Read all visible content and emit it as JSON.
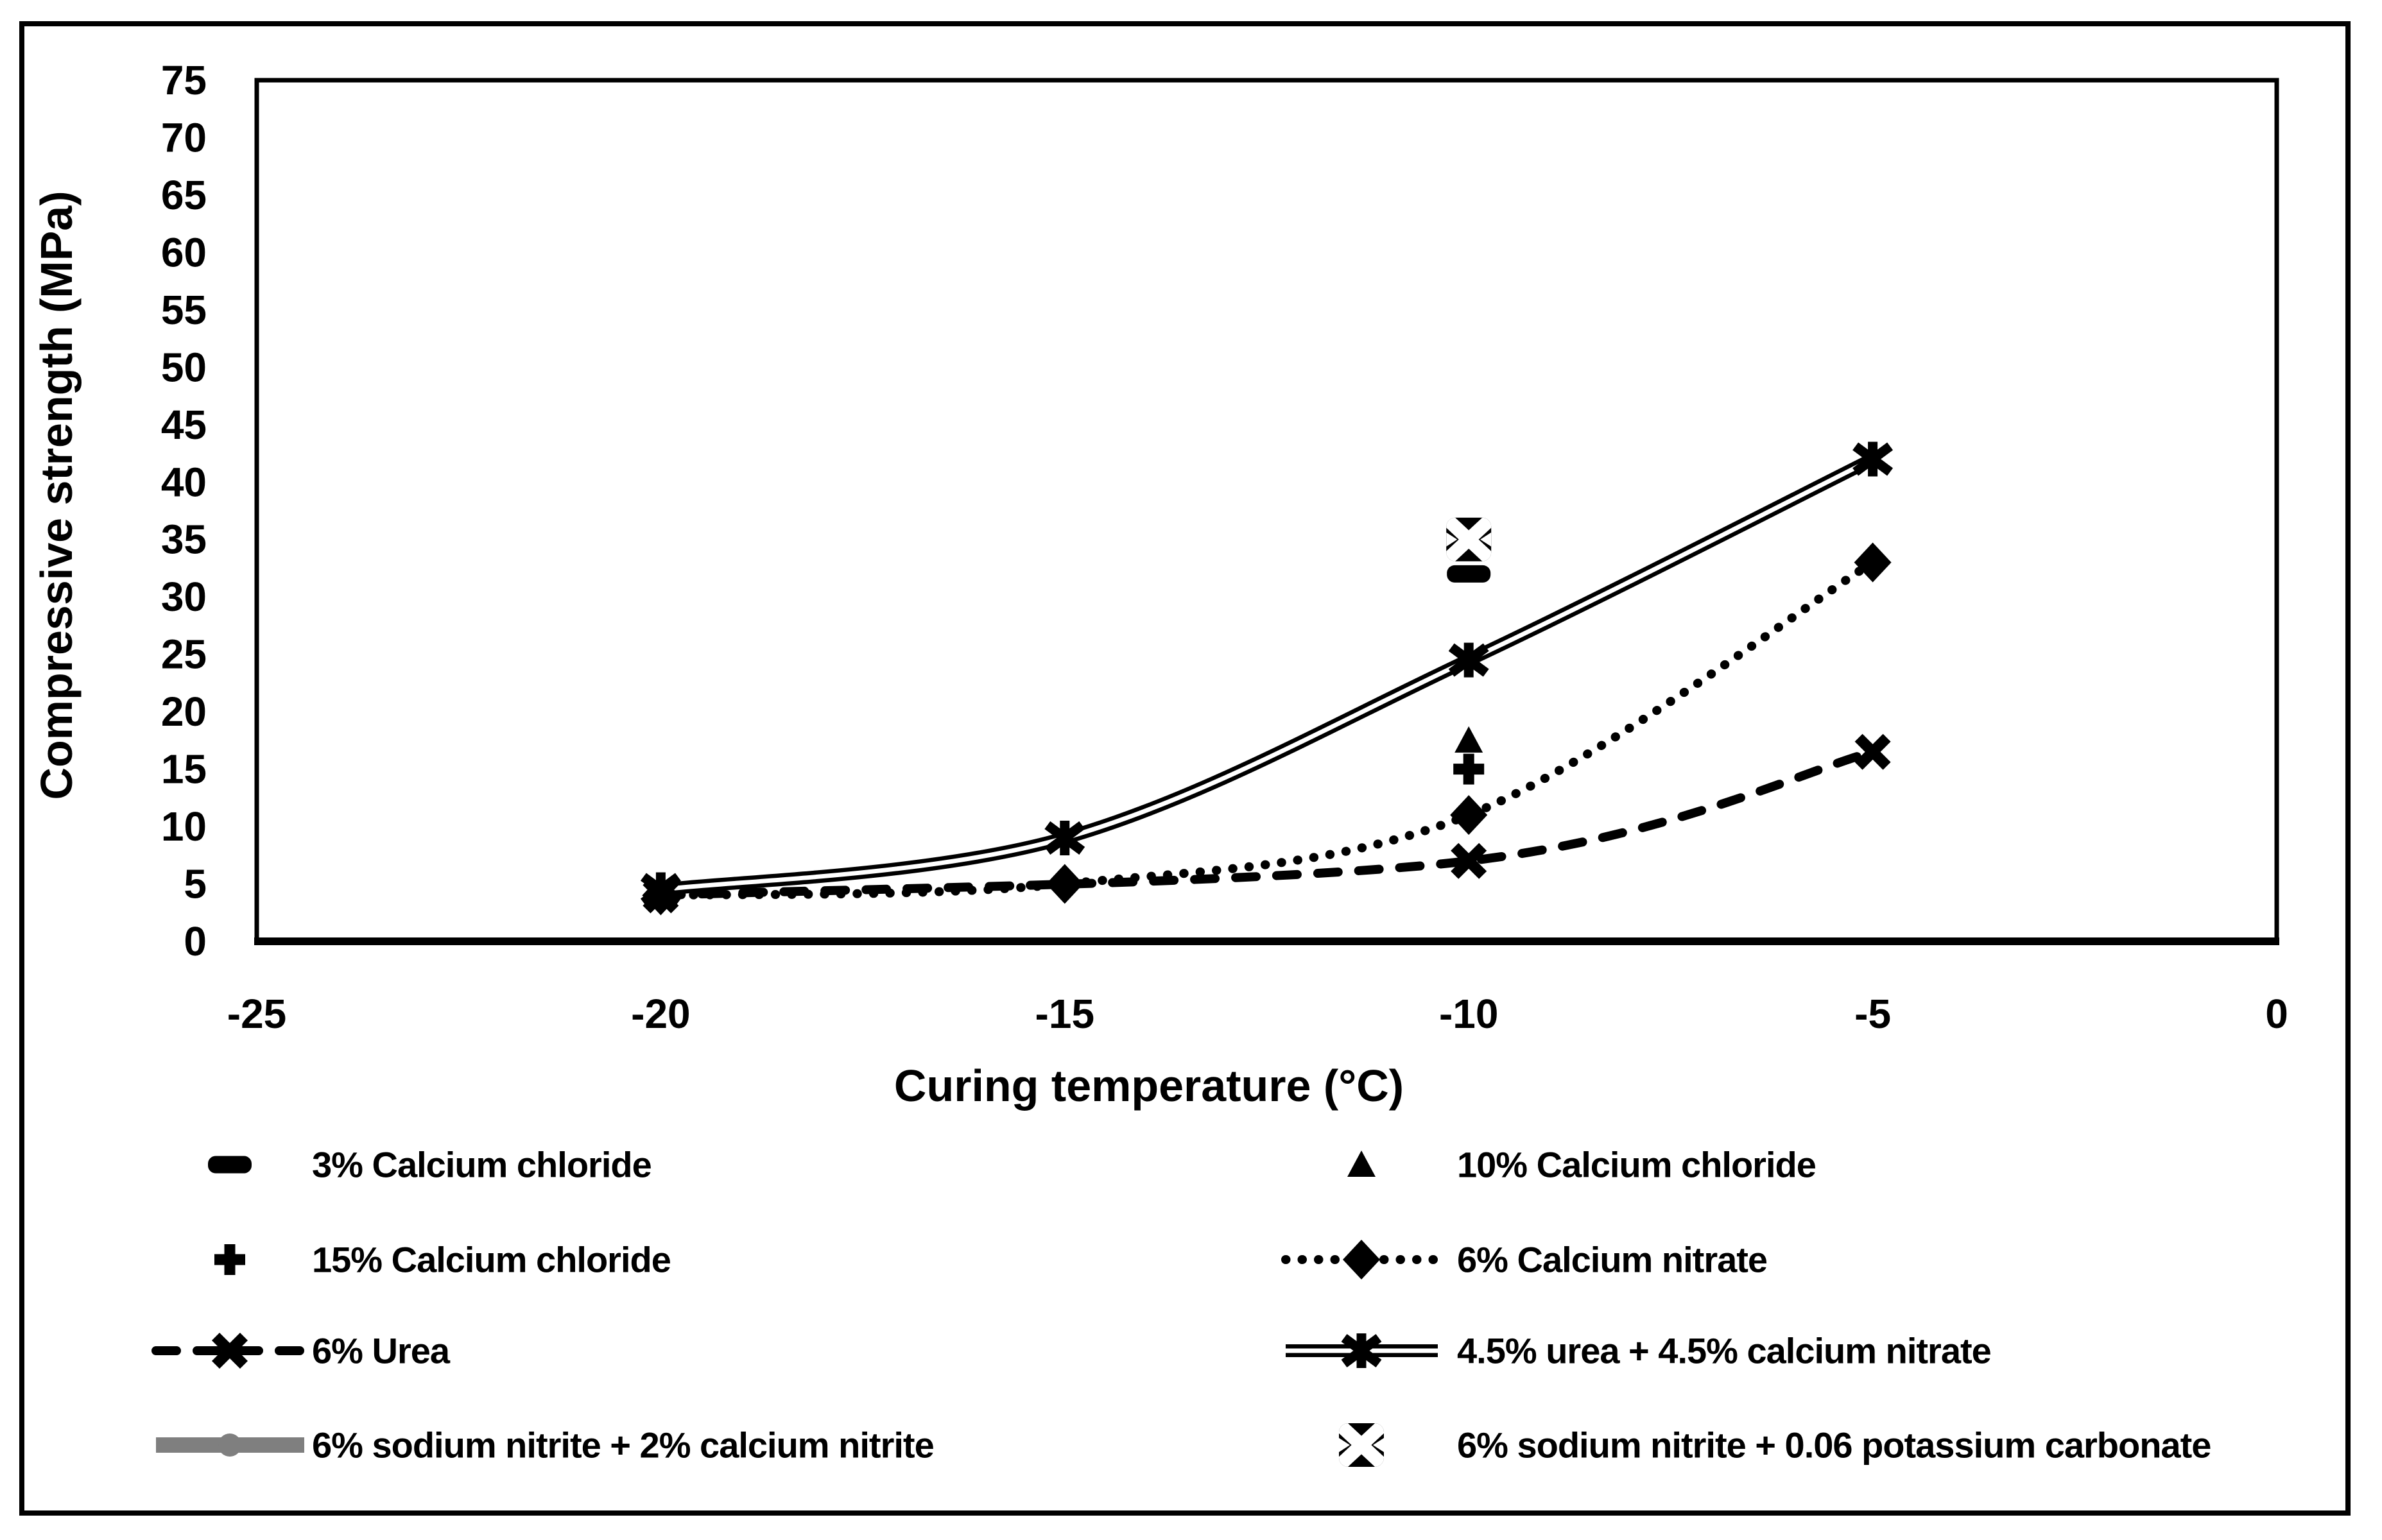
{
  "figure": {
    "x_axis_title": "Curing temperature (°C)",
    "y_axis_title": "Compressive strength (MPa)"
  },
  "colors": {
    "black": "#000000",
    "gray": "#7f7f7f",
    "background": "#ffffff"
  },
  "chart_data": {
    "type": "line",
    "title": "",
    "xlabel": "Curing temperature (°C)",
    "ylabel": "Compressive strength (MPa)",
    "xlim": [
      -25,
      0
    ],
    "ylim": [
      0,
      75
    ],
    "x_ticks": [
      "-25",
      "-20",
      "-15",
      "-10",
      "-5",
      "0"
    ],
    "x_tick_values": [
      -25,
      -20,
      -15,
      -10,
      -5,
      0
    ],
    "y_ticks": [
      "0",
      "5",
      "10",
      "15",
      "20",
      "25",
      "30",
      "35",
      "40",
      "45",
      "50",
      "55",
      "60",
      "65",
      "70",
      "75"
    ],
    "y_tick_values": [
      0,
      5,
      10,
      15,
      20,
      25,
      30,
      35,
      40,
      45,
      50,
      55,
      60,
      65,
      70,
      75
    ],
    "grid": false,
    "legend_position": "bottom-two-columns",
    "series": [
      {
        "name": "3% Calcium chloride",
        "marker": "dash",
        "line": "none",
        "color": "#000000",
        "smooth": false,
        "points": [
          [
            -10,
            32
          ]
        ]
      },
      {
        "name": "10% Calcium chloride",
        "marker": "triangle",
        "line": "none",
        "color": "#000000",
        "smooth": false,
        "points": [
          [
            -10,
            17.5
          ]
        ]
      },
      {
        "name": "15% Calcium chloride",
        "marker": "plus",
        "line": "none",
        "color": "#000000",
        "smooth": false,
        "points": [
          [
            -10,
            15
          ]
        ]
      },
      {
        "name": "6% Calcium nitrate",
        "marker": "diamond",
        "line": "dotted",
        "color": "#000000",
        "smooth": true,
        "points": [
          [
            -20,
            4
          ],
          [
            -15,
            5
          ],
          [
            -10,
            11
          ],
          [
            -5,
            33
          ]
        ]
      },
      {
        "name": "6% Urea",
        "marker": "x",
        "line": "dashed",
        "color": "#000000",
        "smooth": true,
        "points": [
          [
            -20,
            4
          ],
          [
            -10,
            7
          ],
          [
            -5,
            16.5
          ]
        ]
      },
      {
        "name": "4.5% urea + 4.5% calcium nitrate",
        "marker": "asterisk",
        "line": "double",
        "color": "#000000",
        "smooth": true,
        "points": [
          [
            -20,
            4.5
          ],
          [
            -15,
            9
          ],
          [
            -10,
            24.5
          ],
          [
            -5,
            42
          ]
        ]
      },
      {
        "name": "6% sodium nitrite + 2% calcium nitrite",
        "marker": "circle",
        "line": "thick",
        "color": "#7f7f7f",
        "smooth": false,
        "points": []
      },
      {
        "name": "6% sodium nitrite + 0.06 potassium carbonate",
        "marker": "square-x",
        "line": "none",
        "color": "#000000",
        "smooth": false,
        "points": [
          [
            -10,
            35
          ]
        ]
      }
    ]
  },
  "legend": {
    "columns": [
      {
        "entries": [
          0,
          2,
          4,
          6
        ]
      },
      {
        "entries": [
          1,
          3,
          5,
          7
        ]
      }
    ]
  }
}
